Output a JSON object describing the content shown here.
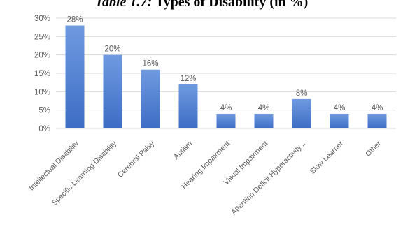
{
  "caption": {
    "label": "Table 1.7:",
    "text": "Types of Disability (in %)"
  },
  "chart_data": {
    "type": "bar",
    "title": "Table 1.7: Types of Disability (in %)",
    "xlabel": "",
    "ylabel": "",
    "categories": [
      "Intellectual Disability",
      "Specific Learning Disability",
      "Cerebral Palsy",
      "Autism",
      "Hearing Impairment",
      "Visual Impairment",
      "Attention Deficit Hyperactivity...",
      "Slow Learner",
      "Other"
    ],
    "values": [
      28,
      20,
      16,
      12,
      4,
      4,
      8,
      4,
      4
    ],
    "data_labels": [
      "28%",
      "20%",
      "16%",
      "12%",
      "4%",
      "4%",
      "8%",
      "4%",
      "4%"
    ],
    "ylim": [
      0,
      30
    ],
    "y_ticks": [
      {
        "value": 0,
        "label": "0%"
      },
      {
        "value": 5,
        "label": "5%"
      },
      {
        "value": 10,
        "label": "10%"
      },
      {
        "value": 15,
        "label": "15%"
      },
      {
        "value": 20,
        "label": "20%"
      },
      {
        "value": 25,
        "label": "25%"
      },
      {
        "value": 30,
        "label": "30%"
      }
    ],
    "grid": true,
    "legend": "none",
    "colors": {
      "bar_top": "#6f9ae0",
      "bar_bottom": "#3d6cc4",
      "grid": "#d9d9d9",
      "text": "#595959"
    }
  }
}
